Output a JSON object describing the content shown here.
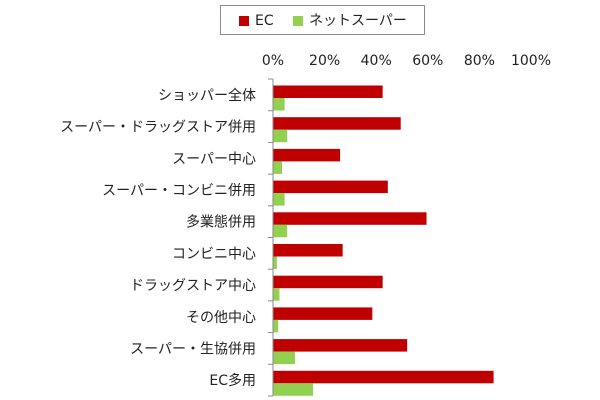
{
  "chart_data": {
    "type": "bar",
    "orientation": "horizontal",
    "categories": [
      "ショッパー全体",
      "スーパー・ドラッグストア併用",
      "スーパー中心",
      "スーパー・コンビニ併用",
      "多業態併用",
      "コンビニ中心",
      "ドラッグストア中心",
      "その他中心",
      "スーパー・生協併用",
      "EC多用"
    ],
    "series": [
      {
        "name": "EC",
        "color": "#c00000",
        "values": [
          42.5,
          49.5,
          26,
          44.5,
          59.5,
          27,
          42.5,
          38.5,
          52,
          85.5
        ]
      },
      {
        "name": "ネットスーパー",
        "color": "#92d050",
        "values": [
          4.5,
          5.5,
          3.5,
          4.5,
          5.5,
          1.5,
          2.5,
          2,
          8.5,
          15.5
        ]
      }
    ],
    "x_tick_labels": [
      "0%",
      "20%",
      "40%",
      "60%",
      "80%",
      "100%"
    ],
    "xlim": [
      0,
      100
    ],
    "grid": false,
    "legend_position": "top"
  }
}
